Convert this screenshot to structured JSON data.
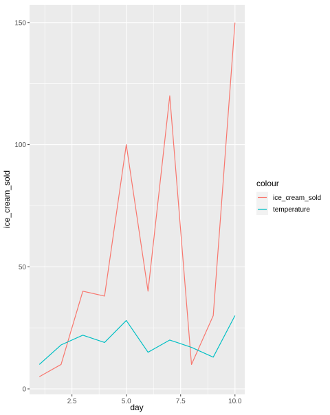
{
  "chart_data": {
    "type": "line",
    "xlabel": "day",
    "ylabel": "ice_cream_sold",
    "xlim": [
      0.55,
      10.45
    ],
    "ylim": [
      -2.25,
      157.25
    ],
    "x_ticks": [
      2.5,
      5.0,
      7.5,
      10.0
    ],
    "x_tick_labels": [
      "2.5",
      "5.0",
      "7.5",
      "10.0"
    ],
    "y_ticks": [
      0,
      50,
      100,
      150
    ],
    "y_tick_labels": [
      "0",
      "50",
      "100",
      "150"
    ],
    "grid": true,
    "legend": {
      "title": "colour",
      "position": "right"
    },
    "x": [
      1,
      2,
      3,
      4,
      5,
      6,
      7,
      8,
      9,
      10
    ],
    "series": [
      {
        "name": "ice_cream_sold",
        "color": "#F8766D",
        "values": [
          5,
          10,
          40,
          38,
          100,
          40,
          120,
          10,
          30,
          150
        ]
      },
      {
        "name": "temperature",
        "color": "#00BFC4",
        "values": [
          10,
          18,
          22,
          19,
          28,
          15,
          20,
          17,
          13,
          30
        ]
      }
    ],
    "panel_color": "#EBEBEB",
    "grid_color": "#FFFFFF"
  }
}
